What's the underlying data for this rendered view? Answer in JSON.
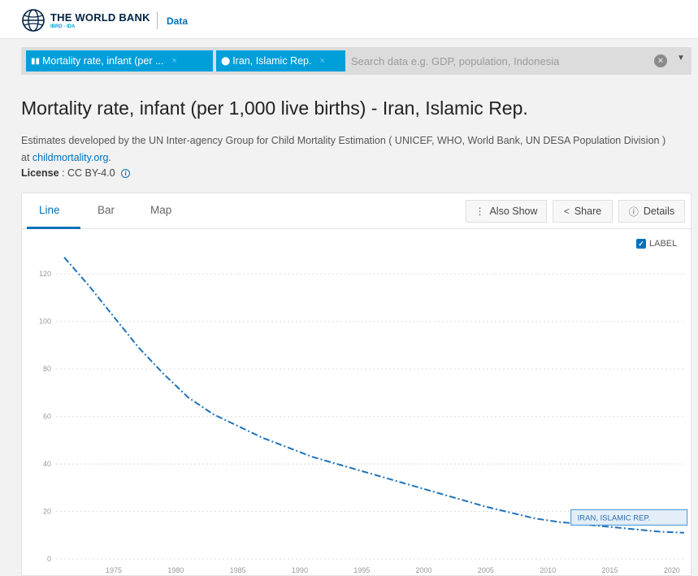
{
  "header": {
    "logo_title": "THE WORLD BANK",
    "logo_sub": "IBRD · IDA",
    "section": "Data"
  },
  "search": {
    "chips": [
      {
        "label": "Mortality rate, infant (per ...",
        "remove": "×"
      },
      {
        "label": "Iran, Islamic Rep.",
        "remove": "×"
      }
    ],
    "placeholder": "Search data e.g. GDP, population, Indonesia",
    "clear": "×",
    "dropdown": "▼"
  },
  "indicator": {
    "title": "Mortality rate, infant (per 1,000 live births) - Iran, Islamic Rep.",
    "description_prefix": "Estimates developed by the UN Inter-agency Group for Child Mortality Estimation ( UNICEF, WHO, World Bank, UN DESA Population Division ) at ",
    "description_link": "childmortality.org",
    "description_suffix": ".",
    "license_label": "License",
    "license_value": " : CC BY-4.0 "
  },
  "tabs": [
    {
      "label": "Line"
    },
    {
      "label": "Bar"
    },
    {
      "label": "Map"
    }
  ],
  "actions": {
    "also_show": "Also Show",
    "share": "Share",
    "details": "Details"
  },
  "label_toggle": "LABEL",
  "colors": {
    "accent": "#0071bc",
    "line": "#1f72b8",
    "chip": "#009fda"
  },
  "chart_data": {
    "type": "line",
    "xlim": [
      1971,
      2021
    ],
    "ylim": [
      0,
      130
    ],
    "xticks": [
      1975,
      1980,
      1985,
      1990,
      1995,
      2000,
      2005,
      2010,
      2015,
      2020
    ],
    "yticks": [
      0,
      20,
      40,
      60,
      80,
      100,
      120
    ],
    "grid": true,
    "series": [
      {
        "name": "IRAN, ISLAMIC REP.",
        "x": [
          1971,
          1973,
          1975,
          1977,
          1979,
          1981,
          1983,
          1985,
          1987,
          1989,
          1991,
          1993,
          1995,
          1997,
          1999,
          2001,
          2003,
          2005,
          2007,
          2009,
          2011,
          2013,
          2015,
          2017,
          2019,
          2021
        ],
        "y": [
          127,
          115,
          102,
          89,
          78,
          68,
          61,
          56,
          51,
          47,
          43,
          40,
          37,
          34,
          31,
          28,
          25,
          22,
          19.5,
          17,
          15.5,
          14.5,
          13.5,
          12.5,
          11.5,
          11
        ]
      }
    ]
  }
}
